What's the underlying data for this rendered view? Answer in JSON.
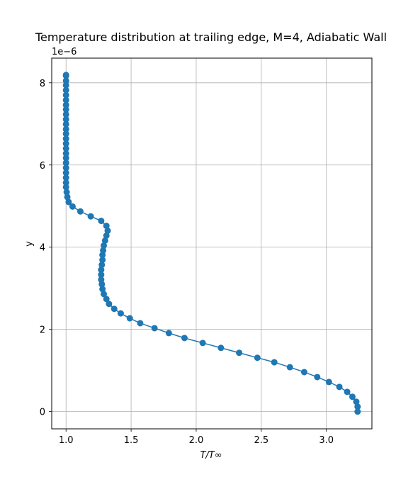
{
  "chart_data": {
    "type": "line",
    "title": "Temperature distribution at trailing edge, M=4, Adiabatic Wall",
    "xlabel": "T/T∞",
    "ylabel": "y",
    "y_offset_label": "1e−6",
    "xlim": [
      0.89,
      3.35
    ],
    "ylim": [
      -0.42,
      8.6
    ],
    "x_ticks": [
      1.0,
      1.5,
      2.0,
      2.5,
      3.0
    ],
    "x_tick_labels": [
      "1.0",
      "1.5",
      "2.0",
      "2.5",
      "3.0"
    ],
    "y_ticks": [
      0,
      2,
      4,
      6,
      8
    ],
    "y_tick_labels": [
      "0",
      "2",
      "4",
      "6",
      "8"
    ],
    "grid": true,
    "marker": "circle",
    "color": "#1f77b4",
    "series": [
      {
        "x": [
          3.24,
          3.24,
          3.23,
          3.2,
          3.16,
          3.1,
          3.02,
          2.93,
          2.83,
          2.72,
          2.6,
          2.47,
          2.33,
          2.19,
          2.05,
          1.91,
          1.79,
          1.68,
          1.57,
          1.49,
          1.42,
          1.37,
          1.33,
          1.31,
          1.29,
          1.28,
          1.275,
          1.27,
          1.27,
          1.27,
          1.275,
          1.28,
          1.28,
          1.285,
          1.29,
          1.3,
          1.31,
          1.32,
          1.31,
          1.27,
          1.19,
          1.11,
          1.05,
          1.02,
          1.01,
          1.005,
          1.0,
          1.0,
          1.0,
          1.0,
          1.0,
          1.0,
          1.0,
          1.0,
          1.0,
          1.0,
          1.0,
          1.0,
          1.0,
          1.0,
          1.0,
          1.0,
          1.0,
          1.0,
          1.0,
          1.0,
          1.0,
          1.0,
          1.0,
          1.0,
          1.0
        ],
        "y": [
          0.0,
          0.12,
          0.24,
          0.36,
          0.48,
          0.6,
          0.72,
          0.84,
          0.96,
          1.08,
          1.2,
          1.31,
          1.43,
          1.55,
          1.67,
          1.79,
          1.91,
          2.03,
          2.15,
          2.27,
          2.39,
          2.5,
          2.62,
          2.74,
          2.86,
          2.98,
          3.1,
          3.21,
          3.33,
          3.45,
          3.57,
          3.69,
          3.81,
          3.92,
          4.04,
          4.16,
          4.28,
          4.4,
          4.52,
          4.64,
          4.75,
          4.87,
          4.99,
          5.1,
          5.22,
          5.34,
          5.46,
          5.57,
          5.69,
          5.81,
          5.93,
          6.05,
          6.17,
          6.28,
          6.4,
          6.52,
          6.64,
          6.76,
          6.87,
          6.99,
          7.11,
          7.23,
          7.35,
          7.46,
          7.58,
          7.7,
          7.82,
          7.94,
          8.05,
          8.17,
          8.19
        ]
      }
    ]
  }
}
